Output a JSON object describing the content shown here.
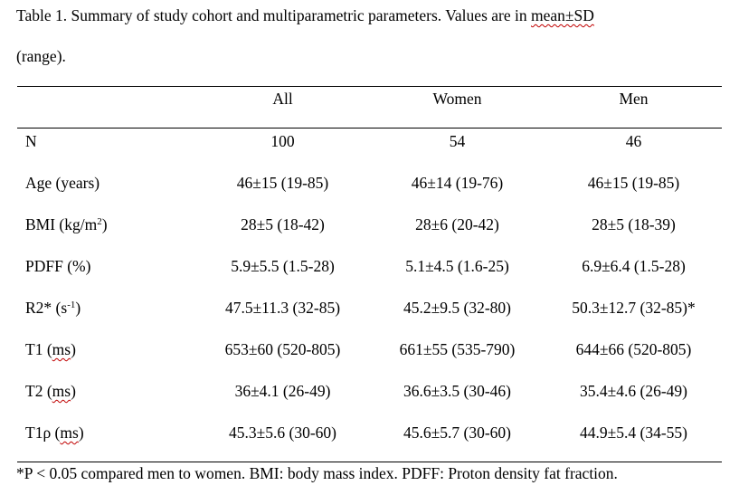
{
  "caption": {
    "line1_text": "Table 1. Summary of study cohort and multiparametric parameters. Values are in ",
    "line1_term": "mean±SD",
    "line2": "(range)."
  },
  "table": {
    "headers": [
      "All",
      "Women",
      "Men"
    ],
    "rows": [
      {
        "label": "N",
        "all": "100",
        "women": "54",
        "men": "46"
      },
      {
        "label": "Age (years)",
        "all": "46±15 (19-85)",
        "women": "46±14 (19-76)",
        "men": "46±15 (19-85)"
      },
      {
        "label_pre": "BMI (kg/m",
        "label_sup": "2",
        "label_post": ")",
        "all": "28±5 (18-42)",
        "women": "28±6 (20-42)",
        "men": "28±5 (18-39)"
      },
      {
        "label": "PDFF (%)",
        "all": "5.9±5.5 (1.5-28)",
        "women": "5.1±4.5 (1.6-25)",
        "men": "6.9±6.4 (1.5-28)"
      },
      {
        "label_pre": "R2* (s",
        "label_sup": "-1",
        "label_post": ")",
        "all": "47.5±11.3 (32-85)",
        "women": "45.2±9.5 (32-80)",
        "men": "50.3±12.7 (32-85)*"
      },
      {
        "label_pre": "T1 (",
        "label_sq": "ms",
        "label_post": ")",
        "all": "653±60 (520-805)",
        "women": "661±55 (535-790)",
        "men": "644±66 (520-805)"
      },
      {
        "label_pre": "T2 (",
        "label_sq": "ms",
        "label_post": ")",
        "all": "36±4.1 (26-49)",
        "women": "36.6±3.5 (30-46)",
        "men": "35.4±4.6 (26-49)"
      },
      {
        "label_pre": "T1ρ (",
        "label_sq": "ms",
        "label_post": ")",
        "all": "45.3±5.6 (30-60)",
        "women": "45.6±5.7 (30-60)",
        "men": "44.9±5.4 (34-55)"
      }
    ]
  },
  "footnote": "*P < 0.05 compared men to women. BMI: body mass index. PDFF: Proton density fat fraction."
}
